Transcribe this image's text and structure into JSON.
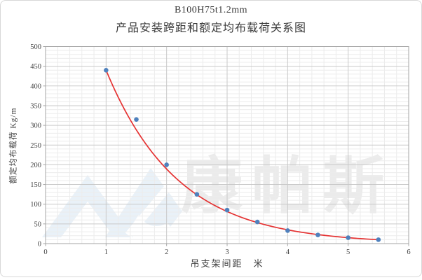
{
  "title": {
    "line1": "B100H75t1.2mm",
    "line2": "产品安装跨距和额定均布载荷关系图"
  },
  "watermark": {
    "text": "康帕斯",
    "logo": "compass-chevron-logo"
  },
  "chart_data": {
    "type": "scatter",
    "title": "B100H75t1.2mm 产品安装跨距和额定均布载荷关系图",
    "xlabel": "吊支架间距　米",
    "ylabel": "额定均布载荷 Kg/m",
    "x": [
      1,
      1.5,
      2,
      2.5,
      3,
      3.5,
      4,
      4.5,
      5,
      5.5
    ],
    "y": [
      440,
      315,
      200,
      125,
      85,
      55,
      33,
      22,
      15,
      10
    ],
    "xlim": [
      0,
      6
    ],
    "ylim": [
      0,
      500
    ],
    "x_ticks": [
      "0",
      "1",
      "2",
      "3",
      "4",
      "5",
      "6"
    ],
    "y_ticks": [
      "0",
      "50",
      "100",
      "150",
      "200",
      "250",
      "300",
      "350",
      "400",
      "450",
      "500"
    ],
    "x_minor_step": 0.2,
    "y_minor_step": 10,
    "grid": "major+minor",
    "legend": false,
    "trendline": {
      "type": "exponential",
      "a": 440,
      "ratio": 0.43,
      "x_start": 1,
      "x_end": 5.5
    }
  },
  "colors": {
    "point": "#4f81bd",
    "trendline": "#e53232",
    "grid_major": "#c9c9c9",
    "grid_minor": "#ececec",
    "plot_border": "#a6a6a6",
    "tick_label": "#3f3f3f",
    "watermark_text": "#ebebeb",
    "watermark_logo": "#e9f1f8",
    "frame_border": "#d8d8d8"
  }
}
